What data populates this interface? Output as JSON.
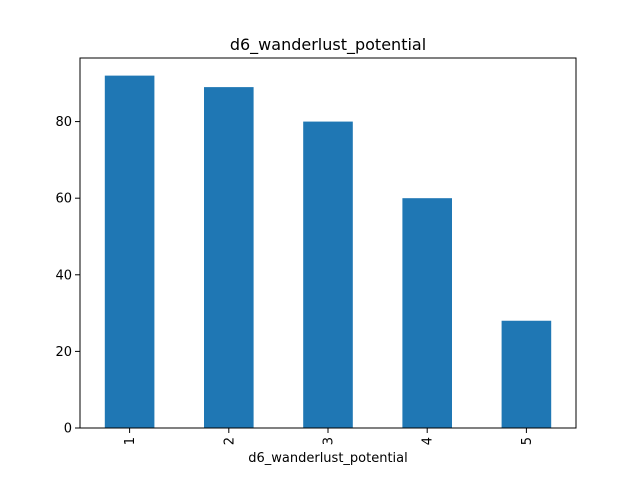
{
  "chart_data": {
    "type": "bar",
    "title": "d6_wanderlust_potential",
    "xlabel": "d6_wanderlust_potential",
    "ylabel": "",
    "categories": [
      "1",
      "2",
      "3",
      "4",
      "5"
    ],
    "values": [
      92,
      89,
      80,
      60,
      28
    ],
    "ylim": [
      0,
      96.6
    ],
    "yticks": [
      0,
      20,
      40,
      60,
      80
    ],
    "grid": false,
    "legend": "none",
    "bar_color": "#1f77b4",
    "x_tick_rotation": "vertical"
  }
}
